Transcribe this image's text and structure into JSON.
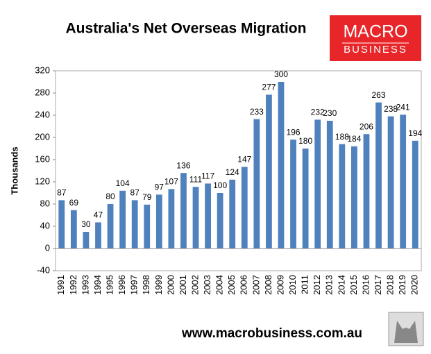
{
  "chart_data": {
    "type": "bar",
    "title": "Australia's Net Overseas Migration",
    "y_label": "Thousands",
    "categories": [
      "1991",
      "1992",
      "1993",
      "1994",
      "1995",
      "1996",
      "1997",
      "1998",
      "1999",
      "2000",
      "2001",
      "2002",
      "2003",
      "2004",
      "2005",
      "2006",
      "2007",
      "2008",
      "2009",
      "2010",
      "2011",
      "2012",
      "2013",
      "2014",
      "2015",
      "2016",
      "2017",
      "2018",
      "2019",
      "2020"
    ],
    "values": [
      87,
      69,
      30,
      47,
      80,
      104,
      87,
      79,
      97,
      107,
      136,
      111,
      117,
      100,
      124,
      147,
      233,
      277,
      300,
      196,
      180,
      232,
      230,
      188,
      184,
      206,
      263,
      238,
      241,
      194
    ],
    "color": "#4f81bd",
    "ylim": [
      -40,
      320
    ],
    "yticks": [
      -40,
      0,
      40,
      80,
      120,
      160,
      200,
      240,
      280,
      320
    ],
    "grid": false
  },
  "logo": {
    "line1": "MACRO",
    "line2": "BUSINESS"
  },
  "footer": "www.macrobusiness.com.au"
}
